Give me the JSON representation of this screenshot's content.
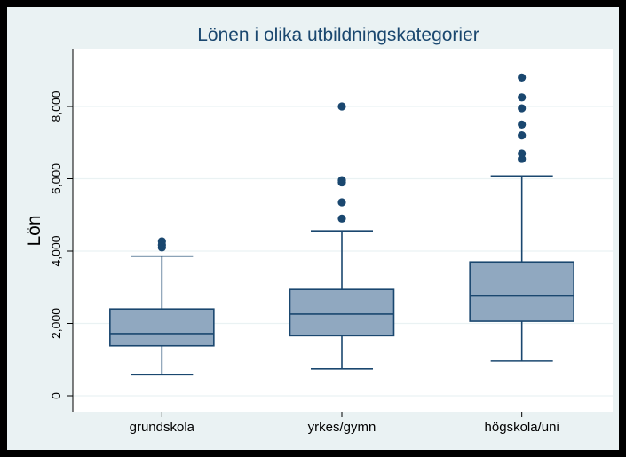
{
  "chart_data": {
    "type": "boxplot",
    "title": "Lönen i olika utbildningskategorier",
    "ylabel": "Lön",
    "xlabel": "",
    "ylim": [
      0,
      9200
    ],
    "yticks": [
      0,
      2000,
      4000,
      6000,
      8000
    ],
    "ytick_labels": [
      "0",
      "2,000",
      "4,000",
      "6,000",
      "8,000"
    ],
    "grid": true,
    "colors": {
      "box_fill": "#90a8c0",
      "box_stroke": "#1a476f",
      "outlier": "#1a476f",
      "plot_bg": "#ffffff",
      "outer_bg": "#eaf2f3",
      "grid": "#eaf2f3",
      "title": "#1a476f"
    },
    "categories": [
      "grundskola",
      "yrkes/gymn",
      "högskola/uni"
    ],
    "boxes": [
      {
        "whisker_low": 580,
        "q1": 1380,
        "median": 1720,
        "q3": 2400,
        "whisker_high": 3860,
        "outliers": [
          4100,
          4170,
          4270
        ]
      },
      {
        "whisker_low": 740,
        "q1": 1660,
        "median": 2260,
        "q3": 2940,
        "whisker_high": 4560,
        "outliers": [
          4900,
          5350,
          5900,
          5960,
          8000
        ]
      },
      {
        "whisker_low": 960,
        "q1": 2060,
        "median": 2760,
        "q3": 3700,
        "whisker_high": 6080,
        "outliers": [
          6550,
          6700,
          7200,
          7500,
          7950,
          8250,
          8800
        ]
      }
    ]
  }
}
